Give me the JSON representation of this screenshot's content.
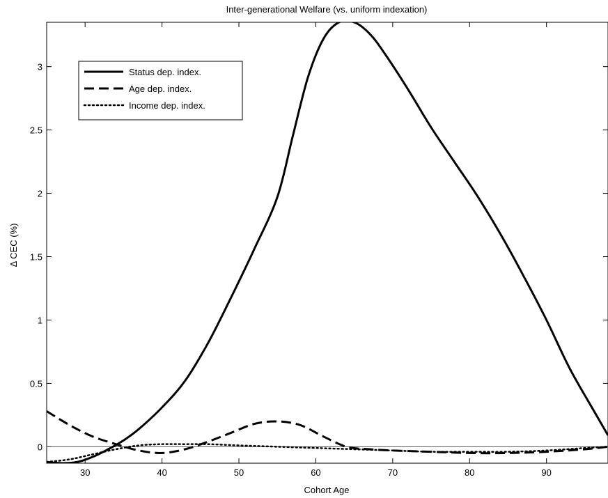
{
  "chart_data": {
    "type": "line",
    "title": "Inter-generational Welfare (vs. uniform indexation)",
    "xlabel": "Cohort Age",
    "ylabel": "Δ CEC (%)",
    "xlim": [
      25,
      98
    ],
    "ylim": [
      -0.13,
      3.35
    ],
    "xticks": [
      30,
      40,
      50,
      60,
      70,
      80,
      90
    ],
    "yticks": [
      0,
      0.5,
      1,
      1.5,
      2,
      2.5,
      3
    ],
    "ytick_labels": [
      "0",
      "0.5",
      "1",
      "1.5",
      "2",
      "2.5",
      "3"
    ],
    "xtick_labels": [
      "30",
      "40",
      "50",
      "60",
      "70",
      "80",
      "90"
    ],
    "grid": false,
    "zero_line": true,
    "legend_position": "top-left",
    "series": [
      {
        "name": "Status dep. index.",
        "style": "solid",
        "x": [
          25,
          27,
          29,
          31,
          33,
          35,
          37,
          40,
          43,
          46,
          49,
          52,
          55,
          57,
          59,
          61,
          63,
          65,
          67,
          69,
          72,
          75,
          78,
          81,
          84,
          87,
          90,
          93,
          96,
          98
        ],
        "y": [
          -0.12,
          -0.13,
          -0.12,
          -0.08,
          -0.02,
          0.05,
          0.14,
          0.31,
          0.52,
          0.82,
          1.18,
          1.56,
          1.97,
          2.45,
          2.92,
          3.22,
          3.35,
          3.35,
          3.26,
          3.1,
          2.82,
          2.52,
          2.25,
          1.98,
          1.68,
          1.35,
          1.0,
          0.62,
          0.3,
          0.09
        ]
      },
      {
        "name": "Age dep. index.",
        "style": "dashed",
        "x": [
          25,
          28,
          31,
          34,
          37,
          40,
          43,
          46,
          49,
          52,
          55,
          58,
          61,
          64,
          67,
          70,
          75,
          80,
          85,
          90,
          95,
          98
        ],
        "y": [
          0.28,
          0.17,
          0.08,
          0.02,
          -0.03,
          -0.05,
          -0.02,
          0.04,
          0.11,
          0.18,
          0.2,
          0.17,
          0.08,
          0.0,
          -0.02,
          -0.03,
          -0.04,
          -0.05,
          -0.05,
          -0.04,
          -0.02,
          0.0
        ]
      },
      {
        "name": "Income dep. index.",
        "style": "dotted",
        "x": [
          25,
          28,
          31,
          34,
          37,
          40,
          43,
          46,
          50,
          55,
          60,
          65,
          70,
          75,
          80,
          85,
          90,
          95,
          98
        ],
        "y": [
          -0.12,
          -0.1,
          -0.06,
          -0.02,
          0.01,
          0.02,
          0.02,
          0.02,
          0.01,
          0.0,
          -0.01,
          -0.02,
          -0.03,
          -0.04,
          -0.04,
          -0.04,
          -0.03,
          -0.01,
          0.0
        ]
      }
    ]
  }
}
